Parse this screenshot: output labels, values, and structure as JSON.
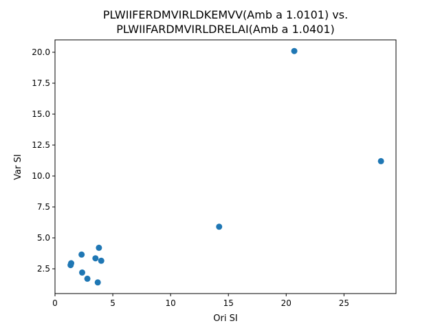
{
  "chart_data": {
    "type": "scatter",
    "title_lines": [
      "PLWIIFERDMVIRLDKEMVV(Amb a 1.0101) vs.",
      "PLWIIFARDMVIRLDRELAI(Amb a 1.0401)"
    ],
    "xlabel": "Ori SI",
    "ylabel": "Var SI",
    "xlim": [
      0,
      29.5
    ],
    "ylim": [
      0.5,
      21.0
    ],
    "xticks": [
      0,
      5,
      10,
      15,
      20,
      25
    ],
    "xtick_labels": [
      "0",
      "5",
      "10",
      "15",
      "20",
      "25"
    ],
    "yticks": [
      2.5,
      5.0,
      7.5,
      10.0,
      12.5,
      15.0,
      17.5,
      20.0
    ],
    "ytick_labels": [
      "2.5",
      "5.0",
      "7.5",
      "10.0",
      "12.5",
      "15.0",
      "17.5",
      "20.0"
    ],
    "grid": false,
    "marker_color": "#1f77b4",
    "points": [
      {
        "x": 20.7,
        "y": 20.1
      },
      {
        "x": 28.2,
        "y": 11.2
      },
      {
        "x": 14.2,
        "y": 5.9
      },
      {
        "x": 3.8,
        "y": 4.2
      },
      {
        "x": 2.3,
        "y": 3.65
      },
      {
        "x": 3.5,
        "y": 3.35
      },
      {
        "x": 4.0,
        "y": 3.15
      },
      {
        "x": 1.4,
        "y": 2.95
      },
      {
        "x": 1.35,
        "y": 2.8
      },
      {
        "x": 2.35,
        "y": 2.2
      },
      {
        "x": 2.8,
        "y": 1.7
      },
      {
        "x": 3.7,
        "y": 1.4
      }
    ]
  }
}
